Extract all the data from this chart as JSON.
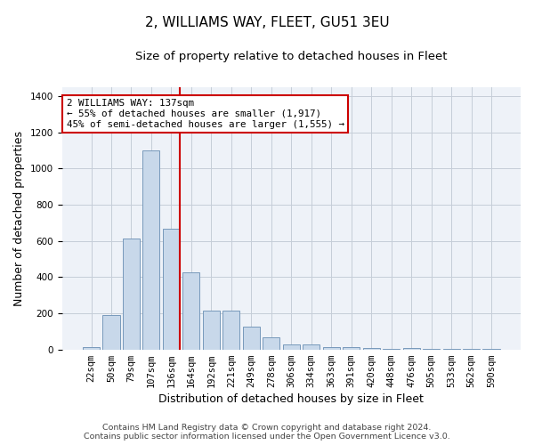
{
  "title": "2, WILLIAMS WAY, FLEET, GU51 3EU",
  "subtitle": "Size of property relative to detached houses in Fleet",
  "xlabel": "Distribution of detached houses by size in Fleet",
  "ylabel": "Number of detached properties",
  "categories": [
    "22sqm",
    "50sqm",
    "79sqm",
    "107sqm",
    "136sqm",
    "164sqm",
    "192sqm",
    "221sqm",
    "249sqm",
    "278sqm",
    "306sqm",
    "334sqm",
    "363sqm",
    "391sqm",
    "420sqm",
    "448sqm",
    "476sqm",
    "505sqm",
    "533sqm",
    "562sqm",
    "590sqm"
  ],
  "values": [
    15,
    190,
    615,
    1100,
    670,
    425,
    215,
    215,
    125,
    65,
    28,
    28,
    15,
    12,
    8,
    5,
    9,
    2,
    1,
    1,
    1
  ],
  "bar_color": "#c8d8ea",
  "bar_edge_color": "#7799bb",
  "property_line_index": 4,
  "property_line_color": "#cc0000",
  "annotation_text": "2 WILLIAMS WAY: 137sqm\n← 55% of detached houses are smaller (1,917)\n45% of semi-detached houses are larger (1,555) →",
  "annotation_box_color": "#ffffff",
  "annotation_box_edge_color": "#cc0000",
  "ylim": [
    0,
    1450
  ],
  "yticks": [
    0,
    200,
    400,
    600,
    800,
    1000,
    1200,
    1400
  ],
  "footer_line1": "Contains HM Land Registry data © Crown copyright and database right 2024.",
  "footer_line2": "Contains public sector information licensed under the Open Government Licence v3.0.",
  "title_fontsize": 11,
  "subtitle_fontsize": 9.5,
  "axis_label_fontsize": 9,
  "tick_fontsize": 7.5,
  "annotation_fontsize": 7.8,
  "footer_fontsize": 6.8,
  "background_color": "#ffffff",
  "plot_bg_color": "#eef2f8",
  "grid_color": "#c5cdd8"
}
